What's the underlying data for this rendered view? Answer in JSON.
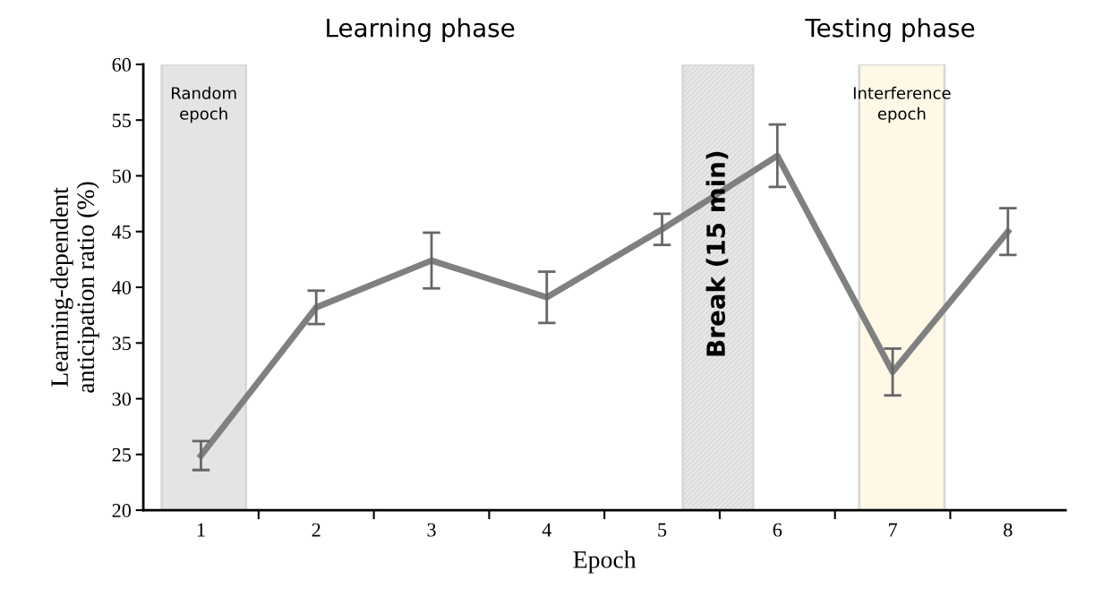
{
  "chart_data": {
    "type": "line",
    "xlabel": "Epoch",
    "ylabel": "Learning-dependent\nanticipation ratio (%)",
    "x": [
      1,
      2,
      3,
      4,
      5,
      6,
      7,
      8
    ],
    "series": [
      {
        "color": "#808080",
        "values": [
          24.9,
          38.2,
          42.4,
          39.1,
          45.2,
          51.8,
          32.4,
          45.0
        ],
        "errors": [
          1.3,
          1.5,
          2.5,
          2.3,
          1.4,
          2.8,
          2.1,
          2.1
        ]
      }
    ],
    "xlim": [
      0.5,
      8.5
    ],
    "xticks": [
      1,
      2,
      3,
      4,
      5,
      6,
      7,
      8
    ],
    "ylim": [
      20,
      60
    ],
    "yticks": [
      20,
      25,
      30,
      35,
      40,
      45,
      50,
      55,
      60
    ],
    "bands": [
      {
        "axis": "x",
        "from": 0.66,
        "to": 1.39,
        "label": "Random\nepoch",
        "color": "#e4e4e4"
      },
      {
        "axis": "x",
        "from": 5.18,
        "to": 5.79,
        "label": "Break (15 min)",
        "color": "#e8e8e8"
      },
      {
        "axis": "x",
        "from": 6.71,
        "to": 7.45,
        "label": "Interference\nepoch",
        "color": "#fff8e6"
      }
    ],
    "annotations": [
      "Learning phase",
      "Testing phase"
    ],
    "grid": false,
    "legend": false,
    "marker": "none",
    "line_style": "solid"
  }
}
